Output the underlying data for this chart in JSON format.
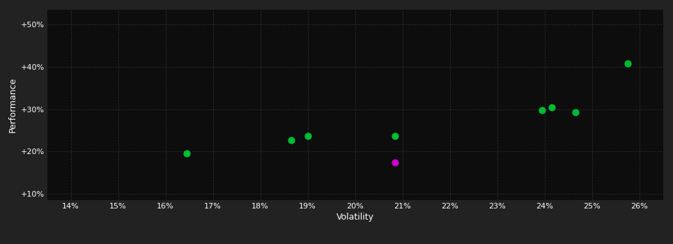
{
  "outer_bg_color": "#222222",
  "plot_bg_color": "#0d0d0d",
  "grid_color": "#2a2a2a",
  "text_color": "#ffffff",
  "xlabel": "Volatility",
  "ylabel": "Performance",
  "xlim": [
    0.135,
    0.265
  ],
  "ylim": [
    0.085,
    0.535
  ],
  "xticks": [
    0.14,
    0.15,
    0.16,
    0.17,
    0.18,
    0.19,
    0.2,
    0.21,
    0.22,
    0.23,
    0.24,
    0.25,
    0.26
  ],
  "yticks": [
    0.1,
    0.2,
    0.3,
    0.4,
    0.5
  ],
  "ytick_labels": [
    "+10%",
    "+20%",
    "+30%",
    "+40%",
    "+50%"
  ],
  "green_points": [
    [
      0.1645,
      0.195
    ],
    [
      0.1865,
      0.226
    ],
    [
      0.19,
      0.236
    ],
    [
      0.2085,
      0.237
    ],
    [
      0.2395,
      0.298
    ],
    [
      0.2415,
      0.305
    ],
    [
      0.2465,
      0.293
    ],
    [
      0.2575,
      0.408
    ]
  ],
  "magenta_points": [
    [
      0.2085,
      0.174
    ]
  ],
  "green_color": "#00bb33",
  "magenta_color": "#cc00cc",
  "marker_size": 55
}
